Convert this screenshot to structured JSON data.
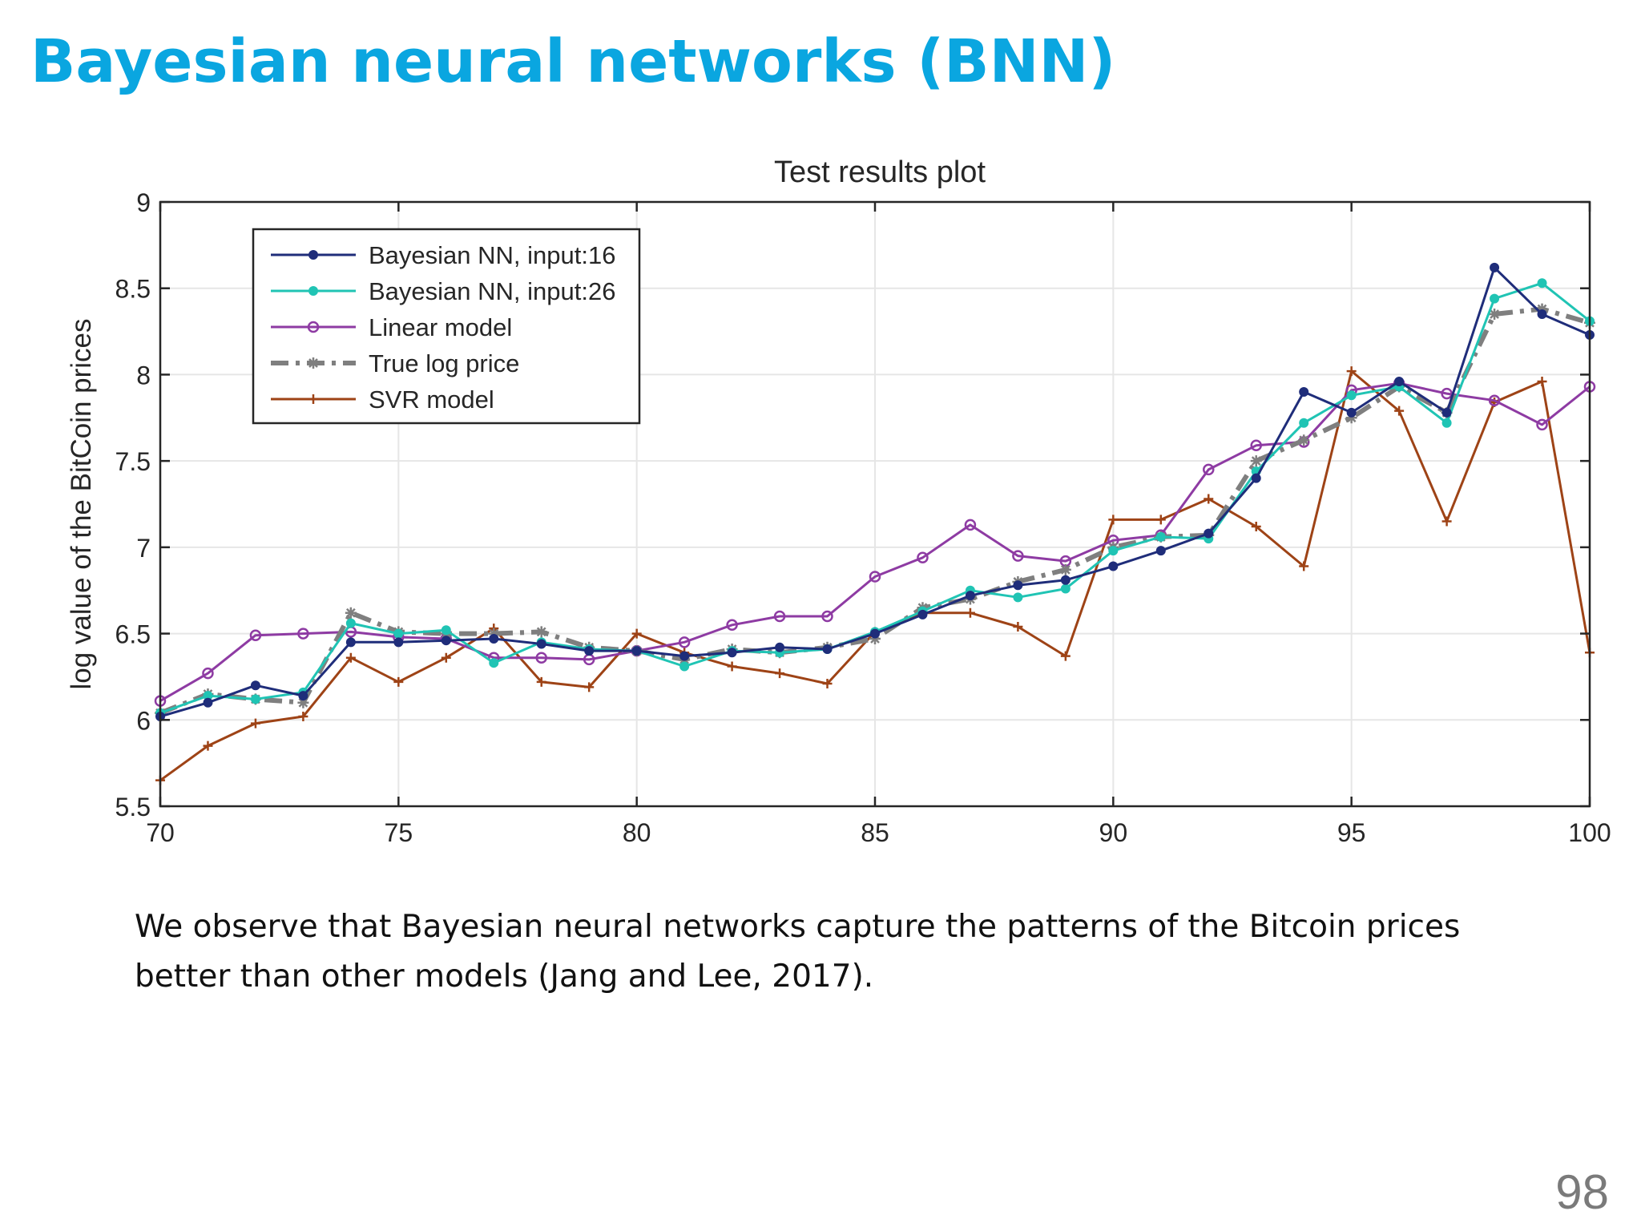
{
  "slide": {
    "title": "Bayesian neural networks (BNN)",
    "caption": "We observe that Bayesian neural networks capture the patterns of the Bitcoin prices better than other models (Jang and Lee, 2017).",
    "page_number": "98"
  },
  "chart_data": {
    "type": "line",
    "title": "Test results plot",
    "xlabel": "",
    "ylabel": "log value of the BitCoin prices",
    "xlim": [
      70,
      100
    ],
    "ylim": [
      5.5,
      9
    ],
    "xticks": [
      70,
      75,
      80,
      85,
      90,
      95,
      100
    ],
    "yticks": [
      5.5,
      6,
      6.5,
      7,
      7.5,
      8,
      8.5,
      9
    ],
    "grid": true,
    "legend_position": "top-left",
    "x": [
      70,
      71,
      72,
      73,
      74,
      75,
      76,
      77,
      78,
      79,
      80,
      81,
      82,
      83,
      84,
      85,
      86,
      87,
      88,
      89,
      90,
      91,
      92,
      93,
      94,
      95,
      96,
      97,
      98,
      99,
      100
    ],
    "series": [
      {
        "name": "Bayesian NN, input:16",
        "color": "#1f2d7a",
        "marker": "dot",
        "dash": "solid",
        "values": [
          6.02,
          6.1,
          6.2,
          6.14,
          6.45,
          6.45,
          6.46,
          6.47,
          6.44,
          6.4,
          6.4,
          6.37,
          6.39,
          6.42,
          6.41,
          6.5,
          6.61,
          6.72,
          6.78,
          6.81,
          6.89,
          6.98,
          7.08,
          7.4,
          7.9,
          7.78,
          7.96,
          7.78,
          8.62,
          8.35,
          8.23
        ]
      },
      {
        "name": "Bayesian NN, input:26",
        "color": "#20c4b4",
        "marker": "dot",
        "dash": "solid",
        "values": [
          6.04,
          6.14,
          6.12,
          6.16,
          6.56,
          6.5,
          6.52,
          6.33,
          6.45,
          6.41,
          6.4,
          6.31,
          6.4,
          6.39,
          6.41,
          6.51,
          6.63,
          6.75,
          6.71,
          6.76,
          6.98,
          7.06,
          7.05,
          7.44,
          7.72,
          7.88,
          7.93,
          7.72,
          8.44,
          8.53,
          8.31
        ]
      },
      {
        "name": "Linear model",
        "color": "#8e3ba3",
        "marker": "circle",
        "dash": "solid",
        "values": [
          6.11,
          6.27,
          6.49,
          6.5,
          6.51,
          6.48,
          6.47,
          6.36,
          6.36,
          6.35,
          6.4,
          6.45,
          6.55,
          6.6,
          6.6,
          6.83,
          6.94,
          7.13,
          6.95,
          6.92,
          7.04,
          7.07,
          7.45,
          7.59,
          7.61,
          7.91,
          7.95,
          7.89,
          7.85,
          7.71,
          7.93
        ]
      },
      {
        "name": "True log price",
        "color": "#7f7f7f",
        "marker": "star",
        "dash": "dashdot",
        "values": [
          6.04,
          6.15,
          6.12,
          6.1,
          6.62,
          6.51,
          6.5,
          6.5,
          6.51,
          6.42,
          6.4,
          6.35,
          6.41,
          6.39,
          6.42,
          6.47,
          6.65,
          6.7,
          6.8,
          6.87,
          7.0,
          7.06,
          7.07,
          7.5,
          7.62,
          7.75,
          7.93,
          7.78,
          8.35,
          8.38,
          8.3
        ]
      },
      {
        "name": "SVR model",
        "color": "#9e4316",
        "marker": "plus",
        "dash": "solid",
        "values": [
          5.65,
          5.85,
          5.98,
          6.02,
          6.36,
          6.22,
          6.36,
          6.53,
          6.22,
          6.19,
          6.5,
          6.39,
          6.31,
          6.27,
          6.21,
          6.51,
          6.62,
          6.62,
          6.54,
          6.37,
          7.16,
          7.16,
          7.28,
          7.12,
          6.89,
          8.02,
          7.79,
          7.15,
          7.84,
          7.96,
          6.39
        ]
      }
    ]
  }
}
